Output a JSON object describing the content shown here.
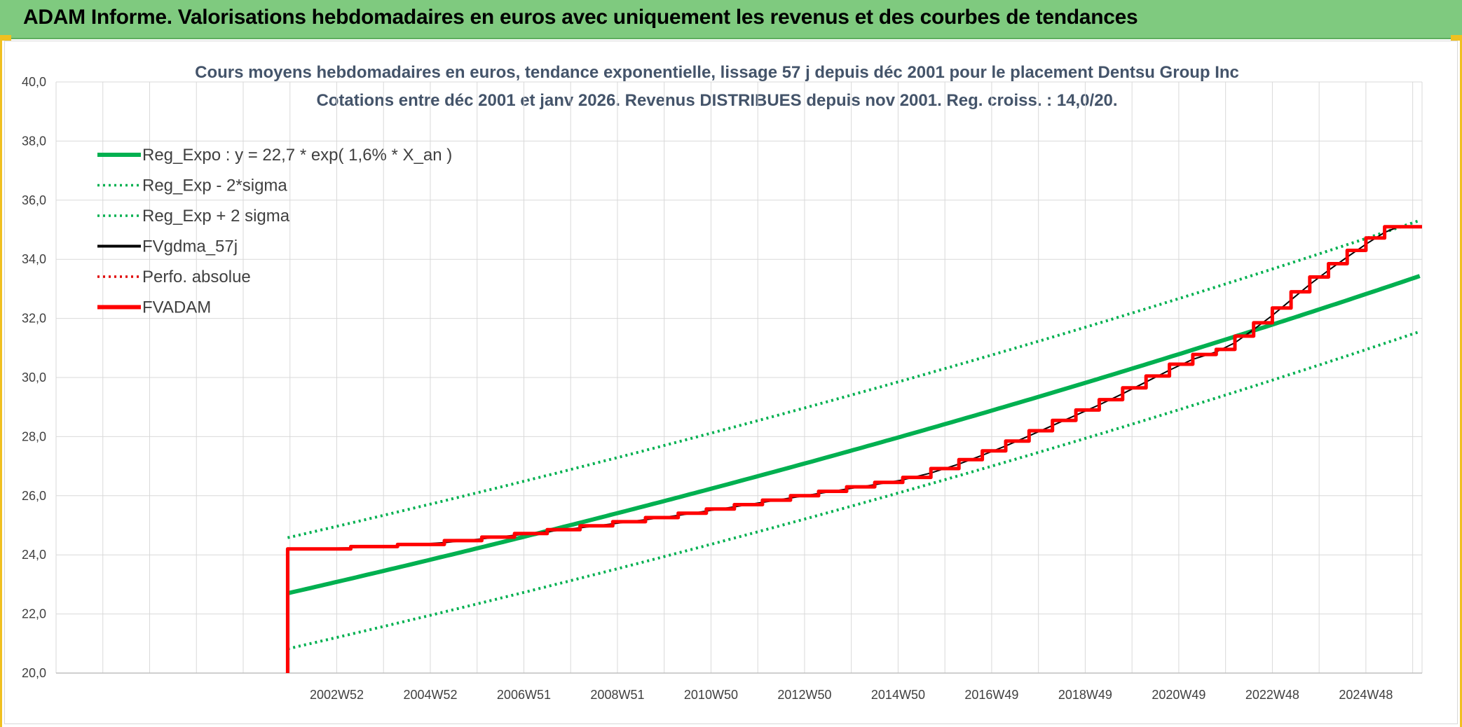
{
  "banner": {
    "title": "ADAM Informe. Valorisations hebdomadaires en euros avec uniquement les revenus et des courbes de tendances"
  },
  "chart_data": {
    "type": "line",
    "title": "Cours moyens hebdomadaires en euros, tendance exponentielle, lissage 57 j depuis déc 2001 pour le placement Dentsu Group Inc",
    "subtitle": "Cotations entre déc 2001 et janv 2026. Revenus DISTRIBUES depuis nov 2001. Reg. croiss. : 14,0/20.",
    "xlabel": "",
    "ylabel": "",
    "ylim": [
      20,
      40
    ],
    "y_ticks": [
      "20,0",
      "22,0",
      "24,0",
      "26,0",
      "28,0",
      "30,0",
      "32,0",
      "34,0",
      "36,0",
      "38,0",
      "40,0"
    ],
    "x_range": [
      1997.0,
      2026.2
    ],
    "x_ticks": [
      {
        "label": "2002W52",
        "x": 2003.0
      },
      {
        "label": "2004W52",
        "x": 2005.0
      },
      {
        "label": "2006W51",
        "x": 2007.0
      },
      {
        "label": "2008W51",
        "x": 2009.0
      },
      {
        "label": "2010W50",
        "x": 2011.0
      },
      {
        "label": "2012W50",
        "x": 2013.0
      },
      {
        "label": "2014W50",
        "x": 2015.0
      },
      {
        "label": "2016W49",
        "x": 2017.0
      },
      {
        "label": "2018W49",
        "x": 2019.0
      },
      {
        "label": "2020W49",
        "x": 2021.0
      },
      {
        "label": "2022W48",
        "x": 2023.0
      },
      {
        "label": "2024W48",
        "x": 2025.0
      }
    ],
    "grid": true,
    "legend_position": "top-left",
    "regression": {
      "start_year": 2001.95,
      "start_value": 22.7,
      "rate": 0.016,
      "sigma_factor": 0.94
    },
    "fvadam_steps": [
      {
        "x": 2001.95,
        "y": 24.2
      },
      {
        "x": 2003.3,
        "y": 24.28
      },
      {
        "x": 2004.3,
        "y": 24.35
      },
      {
        "x": 2005.3,
        "y": 24.48
      },
      {
        "x": 2006.1,
        "y": 24.6
      },
      {
        "x": 2006.8,
        "y": 24.72
      },
      {
        "x": 2007.5,
        "y": 24.85
      },
      {
        "x": 2008.2,
        "y": 24.98
      },
      {
        "x": 2008.9,
        "y": 25.12
      },
      {
        "x": 2009.6,
        "y": 25.26
      },
      {
        "x": 2010.3,
        "y": 25.41
      },
      {
        "x": 2010.9,
        "y": 25.55
      },
      {
        "x": 2011.5,
        "y": 25.7
      },
      {
        "x": 2012.1,
        "y": 25.85
      },
      {
        "x": 2012.7,
        "y": 26.0
      },
      {
        "x": 2013.3,
        "y": 26.15
      },
      {
        "x": 2013.9,
        "y": 26.3
      },
      {
        "x": 2014.5,
        "y": 26.45
      },
      {
        "x": 2015.1,
        "y": 26.62
      },
      {
        "x": 2015.7,
        "y": 26.92
      },
      {
        "x": 2016.3,
        "y": 27.22
      },
      {
        "x": 2016.8,
        "y": 27.52
      },
      {
        "x": 2017.3,
        "y": 27.85
      },
      {
        "x": 2017.8,
        "y": 28.2
      },
      {
        "x": 2018.3,
        "y": 28.55
      },
      {
        "x": 2018.8,
        "y": 28.9
      },
      {
        "x": 2019.3,
        "y": 29.25
      },
      {
        "x": 2019.8,
        "y": 29.65
      },
      {
        "x": 2020.3,
        "y": 30.05
      },
      {
        "x": 2020.8,
        "y": 30.45
      },
      {
        "x": 2021.3,
        "y": 30.78
      },
      {
        "x": 2021.8,
        "y": 30.95
      },
      {
        "x": 2022.2,
        "y": 31.4
      },
      {
        "x": 2022.6,
        "y": 31.85
      },
      {
        "x": 2023.0,
        "y": 32.35
      },
      {
        "x": 2023.4,
        "y": 32.9
      },
      {
        "x": 2023.8,
        "y": 33.4
      },
      {
        "x": 2024.2,
        "y": 33.85
      },
      {
        "x": 2024.6,
        "y": 34.3
      },
      {
        "x": 2025.0,
        "y": 34.72
      },
      {
        "x": 2025.4,
        "y": 35.1
      },
      {
        "x": 2026.2,
        "y": 35.1
      }
    ],
    "fvadam_start_value": 20.0,
    "series": [
      {
        "name": "Reg_Expo : y = 22,7 * exp( 1,6% *  X_an )",
        "color": "#00b050",
        "style": "solid-thick"
      },
      {
        "name": "Reg_Exp - 2*sigma",
        "color": "#00b050",
        "style": "dotted"
      },
      {
        "name": "Reg_Exp + 2 sigma",
        "color": "#00b050",
        "style": "dotted"
      },
      {
        "name": "FVgdma_57j",
        "color": "#000000",
        "style": "solid"
      },
      {
        "name": "Perfo. absolue",
        "color": "#e00000",
        "style": "dotted"
      },
      {
        "name": "FVADAM",
        "color": "#ff0000",
        "style": "solid-thick"
      }
    ]
  }
}
